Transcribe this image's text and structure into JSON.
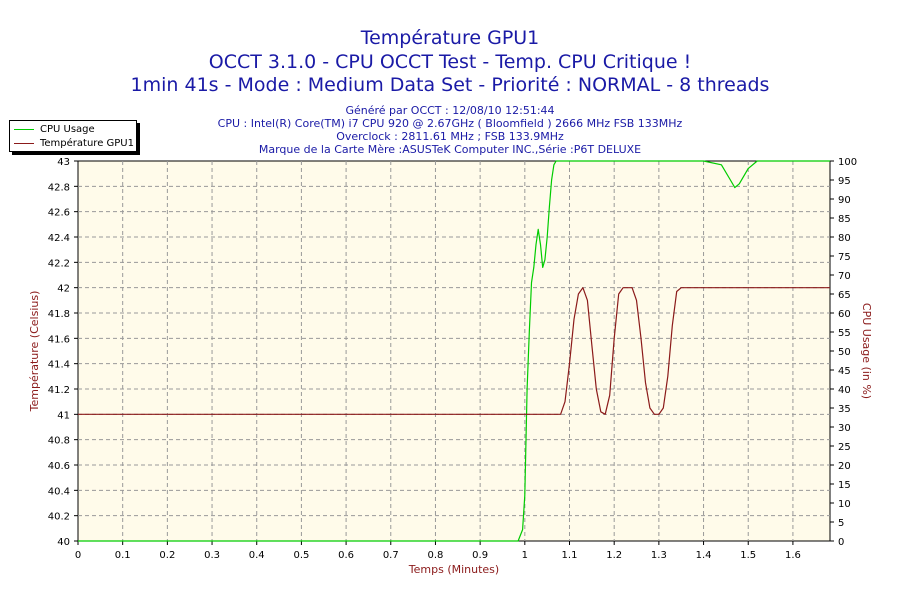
{
  "header": {
    "title1": "Température GPU1",
    "title2": "OCCT 3.1.0 - CPU OCCT Test - Temp. CPU Critique !",
    "title3": "1min 41s - Mode : Medium Data Set - Priorité : NORMAL - 8 threads",
    "sub1": "Généré par OCCT : 12/08/10 12:51:44",
    "sub2": "CPU : Intel(R) Core(TM) i7 CPU 920 @ 2.67GHz ( Bloomfield ) 2666 MHz FSB 133MHz",
    "sub3": "Overclock : 2811.61 MHz ; FSB 133.9MHz",
    "sub4": "Marque de la Carte Mère :ASUSTeK Computer INC.,Série :P6T DELUXE"
  },
  "chart_data": {
    "type": "line",
    "xlabel": "Temps (Minutes)",
    "ylabel": "Température (Celsius)",
    "y2label": "CPU Usage (in %)",
    "xlim": [
      0,
      1.683
    ],
    "ylim": [
      40,
      43
    ],
    "y2lim": [
      0,
      100
    ],
    "x_ticks": [
      "0",
      "0.1",
      "0.2",
      "0.3",
      "0.4",
      "0.5",
      "0.6",
      "0.7",
      "0.8",
      "0.9",
      "1",
      "1.1",
      "1.2",
      "1.3",
      "1.4",
      "1.5",
      "1.6"
    ],
    "y_ticks": [
      "40",
      "40.2",
      "40.4",
      "40.6",
      "40.8",
      "41",
      "41.2",
      "41.4",
      "41.6",
      "41.8",
      "42",
      "42.2",
      "42.4",
      "42.6",
      "42.8",
      "43"
    ],
    "y2_ticks": [
      "0",
      "5",
      "10",
      "15",
      "20",
      "25",
      "30",
      "35",
      "40",
      "45",
      "50",
      "55",
      "60",
      "65",
      "70",
      "75",
      "80",
      "85",
      "90",
      "95",
      "100"
    ],
    "grid": true,
    "legend_position": "top-left",
    "series": [
      {
        "name": "CPU Usage",
        "axis": "right",
        "color": "#00cc00",
        "x": [
          0,
          0.97,
          0.985,
          0.995,
          1.0,
          1.005,
          1.01,
          1.015,
          1.02,
          1.025,
          1.03,
          1.035,
          1.04,
          1.045,
          1.05,
          1.055,
          1.06,
          1.065,
          1.07,
          1.08,
          1.1,
          1.2,
          1.3,
          1.4,
          1.44,
          1.46,
          1.47,
          1.48,
          1.5,
          1.52,
          1.683
        ],
        "y": [
          0,
          0,
          0,
          3,
          12,
          40,
          55,
          68,
          72,
          78,
          82,
          78,
          72,
          74,
          80,
          88,
          95,
          99,
          100,
          100,
          100,
          100,
          100,
          100,
          99,
          95,
          93,
          94,
          98,
          100,
          100
        ]
      },
      {
        "name": "Température GPU1",
        "axis": "left",
        "color": "#8b1a1a",
        "x": [
          0,
          1.08,
          1.09,
          1.1,
          1.11,
          1.12,
          1.13,
          1.14,
          1.15,
          1.16,
          1.17,
          1.18,
          1.19,
          1.2,
          1.21,
          1.22,
          1.23,
          1.24,
          1.25,
          1.26,
          1.27,
          1.28,
          1.29,
          1.3,
          1.31,
          1.32,
          1.33,
          1.34,
          1.35,
          1.36,
          1.683
        ],
        "y": [
          41,
          41,
          41.1,
          41.4,
          41.75,
          41.95,
          42,
          41.9,
          41.55,
          41.2,
          41.02,
          41,
          41.15,
          41.6,
          41.95,
          42,
          42,
          42,
          41.9,
          41.6,
          41.25,
          41.05,
          41,
          41,
          41.05,
          41.3,
          41.7,
          41.97,
          42,
          42,
          42
        ]
      }
    ]
  }
}
